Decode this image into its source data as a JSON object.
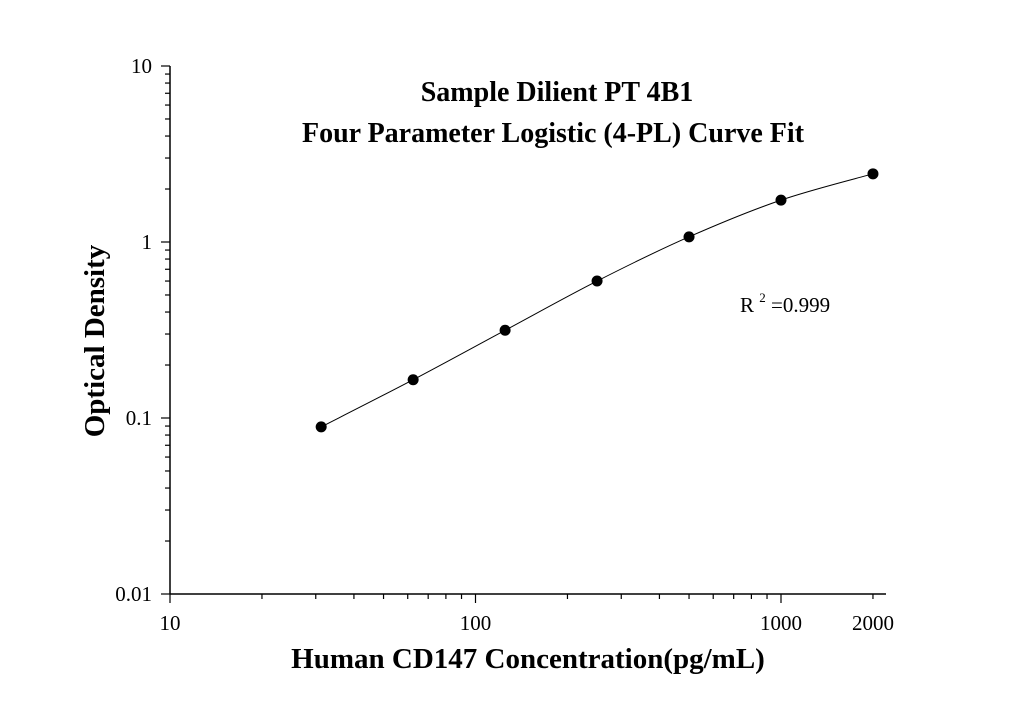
{
  "chart_data": {
    "type": "scatter",
    "title": "Sample Dilient PT 4B1",
    "subtitle": "Four Parameter Logistic (4-PL) Curve Fit",
    "xlabel": "Human CD147 Concentration(pg/mL)",
    "ylabel": "Optical Density",
    "xscale": "log",
    "yscale": "log",
    "xlim": [
      10,
      2600
    ],
    "ylim": [
      0.01,
      10
    ],
    "x_ticks": [
      {
        "value": 10,
        "label": "10"
      },
      {
        "value": 100,
        "label": "100"
      },
      {
        "value": 1000,
        "label": "1000"
      },
      {
        "value": 2000,
        "label": "2000"
      }
    ],
    "y_ticks": [
      {
        "value": 10,
        "label": "10"
      },
      {
        "value": 1,
        "label": "1"
      },
      {
        "value": 0.1,
        "label": "0.1"
      },
      {
        "value": 0.01,
        "label": "0.01"
      }
    ],
    "grid": false,
    "series": [
      {
        "x": [
          31.25,
          62.5,
          125,
          250,
          500,
          1000,
          2000
        ],
        "y": [
          0.089,
          0.165,
          0.315,
          0.6,
          1.07,
          1.73,
          2.44
        ]
      }
    ],
    "fit_curve": {
      "model": "4-PL",
      "x_range": [
        31.25,
        2000
      ]
    },
    "annotation": {
      "base": "R",
      "superscript": "2",
      "text": "=0.999"
    },
    "colors": {
      "marker": "#000000",
      "line": "#000000",
      "axis": "#000000",
      "background": "#ffffff"
    }
  }
}
